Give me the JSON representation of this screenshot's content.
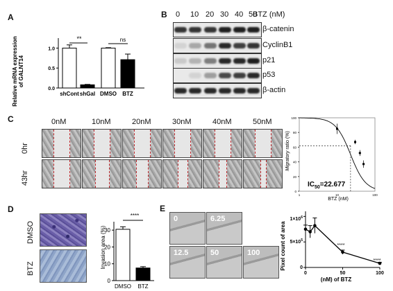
{
  "panels": {
    "A": "A",
    "B": "B",
    "C": "C",
    "D": "D",
    "E": "E"
  },
  "panelA": {
    "ylabel_line1": "Relative mRNA expression",
    "ylabel_line2": "of GALNT14",
    "sig1": "**",
    "sig2": "ns",
    "yticks": [
      "0.0",
      "0.5",
      "1.0"
    ],
    "chart_data": {
      "type": "bar",
      "categories": [
        "shCont",
        "shGal",
        "DMSO",
        "BTZ"
      ],
      "values": [
        1.0,
        0.08,
        1.0,
        0.71
      ],
      "errors": [
        0.08,
        0.01,
        0.01,
        0.14
      ],
      "fill": [
        "#ffffff",
        "#000000",
        "#ffffff",
        "#000000"
      ],
      "ylim": [
        0,
        1.25
      ]
    }
  },
  "panelB": {
    "doses": [
      "0",
      "10",
      "20",
      "30",
      "40",
      "50"
    ],
    "unit": "BTZ (nM)",
    "proteins": [
      "β-catenin",
      "CyclinB1",
      "p21",
      "p53",
      "β-actin"
    ]
  },
  "panelC": {
    "doses": [
      "0nM",
      "10nM",
      "20nM",
      "30nM",
      "40nM",
      "50nM"
    ],
    "rows": [
      "0hr",
      "43hr"
    ],
    "ic50_prefix": "IC",
    "ic50_sub": "50",
    "ic50_value": "=22.677",
    "ylabel_italic": "Migratory",
    "ylabel_rest": " ratio (%)",
    "xlabel": "BTZ (nM)",
    "yticks": [
      "0",
      "20",
      "40",
      "60",
      "80",
      "100"
    ],
    "xticks": [
      "1",
      "10",
      "100"
    ],
    "chart_data": {
      "type": "scatter",
      "x": [
        10,
        30,
        40,
        50
      ],
      "y": [
        85,
        67,
        52,
        37
      ],
      "errors": [
        7,
        3,
        4,
        5
      ],
      "xscale": "log",
      "xlim": [
        1,
        100
      ],
      "ylim": [
        0,
        100
      ],
      "ic50": 22.677
    }
  },
  "panelD": {
    "rows": [
      "DMSO",
      "BTZ"
    ],
    "ylabel": "Invasion area (%)",
    "sig": "****",
    "yticks": [
      "0",
      "10",
      "20",
      "30"
    ],
    "chart_data": {
      "type": "bar",
      "categories": [
        "DMSO",
        "BTZ"
      ],
      "values": [
        30.5,
        7.5
      ],
      "errors": [
        1.5,
        0.8
      ],
      "fill": [
        "#ffffff",
        "#000000"
      ],
      "ylim": [
        0,
        35
      ]
    }
  },
  "panelE": {
    "photo_labels": [
      "0",
      "6.25",
      "12.5",
      "50",
      "100"
    ],
    "ylabel": "Pixel count of area",
    "xlabel": "(nM) of BTZ",
    "sig1": "****",
    "sig2": "****",
    "ytick_1": "1×10",
    "ytick_1_exp": "6",
    "ytick_5": "5×10",
    "ytick_5_exp": "5",
    "ytick_0": "0",
    "xticks": [
      "0",
      "50",
      "100"
    ],
    "chart_data": {
      "type": "line",
      "x": [
        0,
        6.25,
        12.5,
        50,
        100
      ],
      "y": [
        750000,
        700000,
        820000,
        300000,
        80000
      ],
      "errors": [
        80000,
        120000,
        150000,
        40000,
        20000
      ],
      "xlim": [
        0,
        100
      ],
      "ylim": [
        0,
        1100000
      ]
    }
  }
}
